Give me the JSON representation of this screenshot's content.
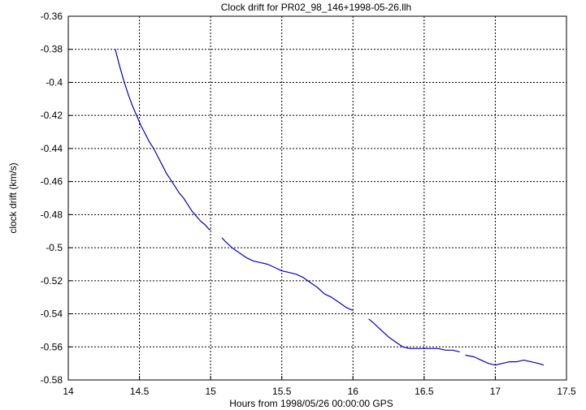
{
  "chart_data": {
    "type": "line",
    "title": "Clock drift for PR02_98_146+1998-05-26.llh",
    "xlabel": "Hours from 1998/05/26 00:00:00 GPS",
    "ylabel": "clock drift (km/s)",
    "xlim": [
      14,
      17.5
    ],
    "ylim": [
      -0.58,
      -0.36
    ],
    "grid": true,
    "x_ticks": [
      14,
      14.5,
      15,
      15.5,
      16,
      16.5,
      17,
      17.5
    ],
    "x_tick_labels": [
      "14",
      "14.5",
      "15",
      "15.5",
      "16",
      "16.5",
      "17",
      "17.5"
    ],
    "y_ticks": [
      -0.36,
      -0.38,
      -0.4,
      -0.42,
      -0.44,
      -0.46,
      -0.48,
      -0.5,
      -0.52,
      -0.54,
      -0.56,
      -0.58
    ],
    "y_tick_labels": [
      "-0.36",
      "-0.38",
      "-0.4",
      "-0.42",
      "-0.44",
      "-0.46",
      "-0.48",
      "-0.5",
      "-0.52",
      "-0.54",
      "-0.56",
      "-0.58"
    ],
    "line_color": "#0000cc",
    "series": [
      {
        "segments": [
          [
            [
              14.33,
              -0.38
            ],
            [
              14.36,
              -0.39
            ],
            [
              14.39,
              -0.399
            ],
            [
              14.42,
              -0.407
            ],
            [
              14.45,
              -0.414
            ],
            [
              14.48,
              -0.42
            ],
            [
              14.51,
              -0.426
            ],
            [
              14.54,
              -0.431
            ],
            [
              14.57,
              -0.436
            ],
            [
              14.6,
              -0.44
            ],
            [
              14.63,
              -0.445
            ],
            [
              14.66,
              -0.45
            ],
            [
              14.69,
              -0.455
            ],
            [
              14.72,
              -0.459
            ],
            [
              14.75,
              -0.463
            ],
            [
              14.78,
              -0.467
            ],
            [
              14.81,
              -0.47
            ],
            [
              14.84,
              -0.474
            ],
            [
              14.87,
              -0.478
            ],
            [
              14.9,
              -0.481
            ],
            [
              14.93,
              -0.484
            ],
            [
              14.96,
              -0.486
            ],
            [
              14.99,
              -0.489
            ],
            [
              15.0,
              -0.489
            ]
          ],
          [
            [
              15.08,
              -0.494
            ],
            [
              15.1,
              -0.496
            ],
            [
              15.15,
              -0.5
            ],
            [
              15.2,
              -0.503
            ],
            [
              15.25,
              -0.506
            ],
            [
              15.3,
              -0.508
            ],
            [
              15.35,
              -0.509
            ],
            [
              15.4,
              -0.51
            ],
            [
              15.45,
              -0.512
            ],
            [
              15.5,
              -0.514
            ],
            [
              15.55,
              -0.515
            ],
            [
              15.6,
              -0.516
            ],
            [
              15.65,
              -0.518
            ],
            [
              15.7,
              -0.521
            ],
            [
              15.75,
              -0.524
            ],
            [
              15.8,
              -0.528
            ],
            [
              15.85,
              -0.53
            ],
            [
              15.9,
              -0.533
            ],
            [
              15.95,
              -0.536
            ],
            [
              16.0,
              -0.538
            ]
          ],
          [
            [
              16.11,
              -0.543
            ],
            [
              16.15,
              -0.546
            ],
            [
              16.2,
              -0.55
            ],
            [
              16.25,
              -0.554
            ],
            [
              16.3,
              -0.557
            ],
            [
              16.35,
              -0.56
            ],
            [
              16.4,
              -0.561
            ],
            [
              16.45,
              -0.561
            ],
            [
              16.5,
              -0.561
            ],
            [
              16.55,
              -0.561
            ],
            [
              16.6,
              -0.561
            ],
            [
              16.65,
              -0.562
            ],
            [
              16.7,
              -0.562
            ],
            [
              16.75,
              -0.563
            ]
          ],
          [
            [
              16.79,
              -0.565
            ],
            [
              16.85,
              -0.566
            ],
            [
              16.9,
              -0.568
            ],
            [
              16.95,
              -0.57
            ],
            [
              17.0,
              -0.571
            ],
            [
              17.05,
              -0.57
            ],
            [
              17.1,
              -0.569
            ],
            [
              17.15,
              -0.569
            ],
            [
              17.2,
              -0.568
            ],
            [
              17.25,
              -0.569
            ],
            [
              17.3,
              -0.57
            ],
            [
              17.34,
              -0.571
            ]
          ]
        ]
      }
    ]
  }
}
